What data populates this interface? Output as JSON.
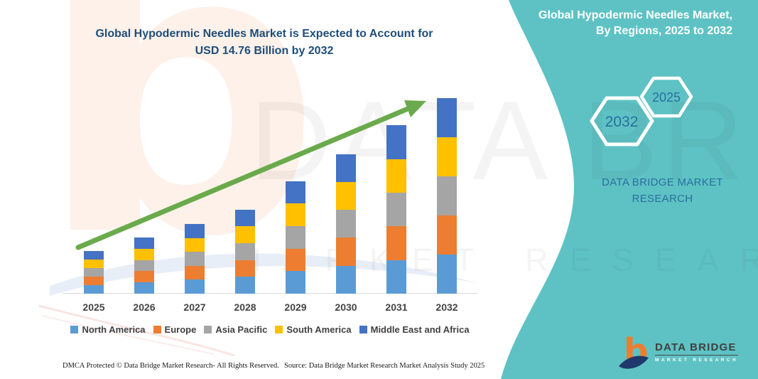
{
  "chart": {
    "title_line1": "Global Hypodermic Needles Market is Expected to Account for",
    "title_line2": "USD 14.76 Billion by 2032",
    "title_color": "#1F4E79",
    "arrow_color": "#6aaa4c",
    "axis_color": "#d9d9d9"
  },
  "chart_data": {
    "type": "bar",
    "stacked": true,
    "title": "Global Hypodermic Needles Market is Expected to Account for USD 14.76 Billion by 2032",
    "categories": [
      "2025",
      "2026",
      "2027",
      "2028",
      "2029",
      "2030",
      "2031",
      "2032"
    ],
    "totals_usd_billion": [
      3.22,
      4.24,
      5.26,
      6.33,
      8.48,
      10.57,
      12.72,
      14.76
    ],
    "series": [
      {
        "name": "North America",
        "color": "#5B9BD5",
        "values": [
          0.64,
          0.85,
          1.05,
          1.27,
          1.7,
          2.11,
          2.54,
          2.95
        ]
      },
      {
        "name": "Europe",
        "color": "#ED7D31",
        "values": [
          0.64,
          0.85,
          1.05,
          1.27,
          1.7,
          2.11,
          2.54,
          2.95
        ]
      },
      {
        "name": "Asia Pacific",
        "color": "#A5A5A5",
        "values": [
          0.64,
          0.85,
          1.05,
          1.27,
          1.7,
          2.11,
          2.54,
          2.95
        ]
      },
      {
        "name": "South America",
        "color": "#FFC000",
        "values": [
          0.64,
          0.85,
          1.05,
          1.27,
          1.7,
          2.11,
          2.54,
          2.95
        ]
      },
      {
        "name": "Middle East and Africa",
        "color": "#4472C4",
        "values": [
          0.64,
          0.85,
          1.05,
          1.27,
          1.7,
          2.11,
          2.54,
          2.95
        ]
      }
    ],
    "xlabel": "",
    "ylabel": "",
    "ylim": [
      0,
      15
    ],
    "gridlines": false,
    "y_axis_visible": false,
    "legend_position": "bottom",
    "annotations": [
      "green upward growth arrow across bars"
    ]
  },
  "side_panel": {
    "bg_color": "#5EC2C4",
    "title_line1": "Global Hypodermic Needles Market,",
    "title_line2": "By Regions, 2025 to 2032",
    "hexagons": [
      {
        "label": "2032"
      },
      {
        "label": "2025"
      }
    ],
    "hex_text_color": "#2a6e9e",
    "brand_line1": "DATA BRIDGE MARKET",
    "brand_line2": "RESEARCH"
  },
  "footer": {
    "dmca": "DMCA Protected © Data Bridge Market Research-  All Rights Reserved.",
    "source": "Source: Data Bridge Market Research  Market Analysis Study 2025"
  },
  "logo": {
    "name": "DATA BRIDGE",
    "sub": "MARKET RESEARCH",
    "b_color": "#ED7D31",
    "swoosh_color": "#20386b"
  },
  "watermark": {
    "letter": "b",
    "main": "DATA BRIDGE",
    "sub": "MARKET RESEARCH"
  }
}
